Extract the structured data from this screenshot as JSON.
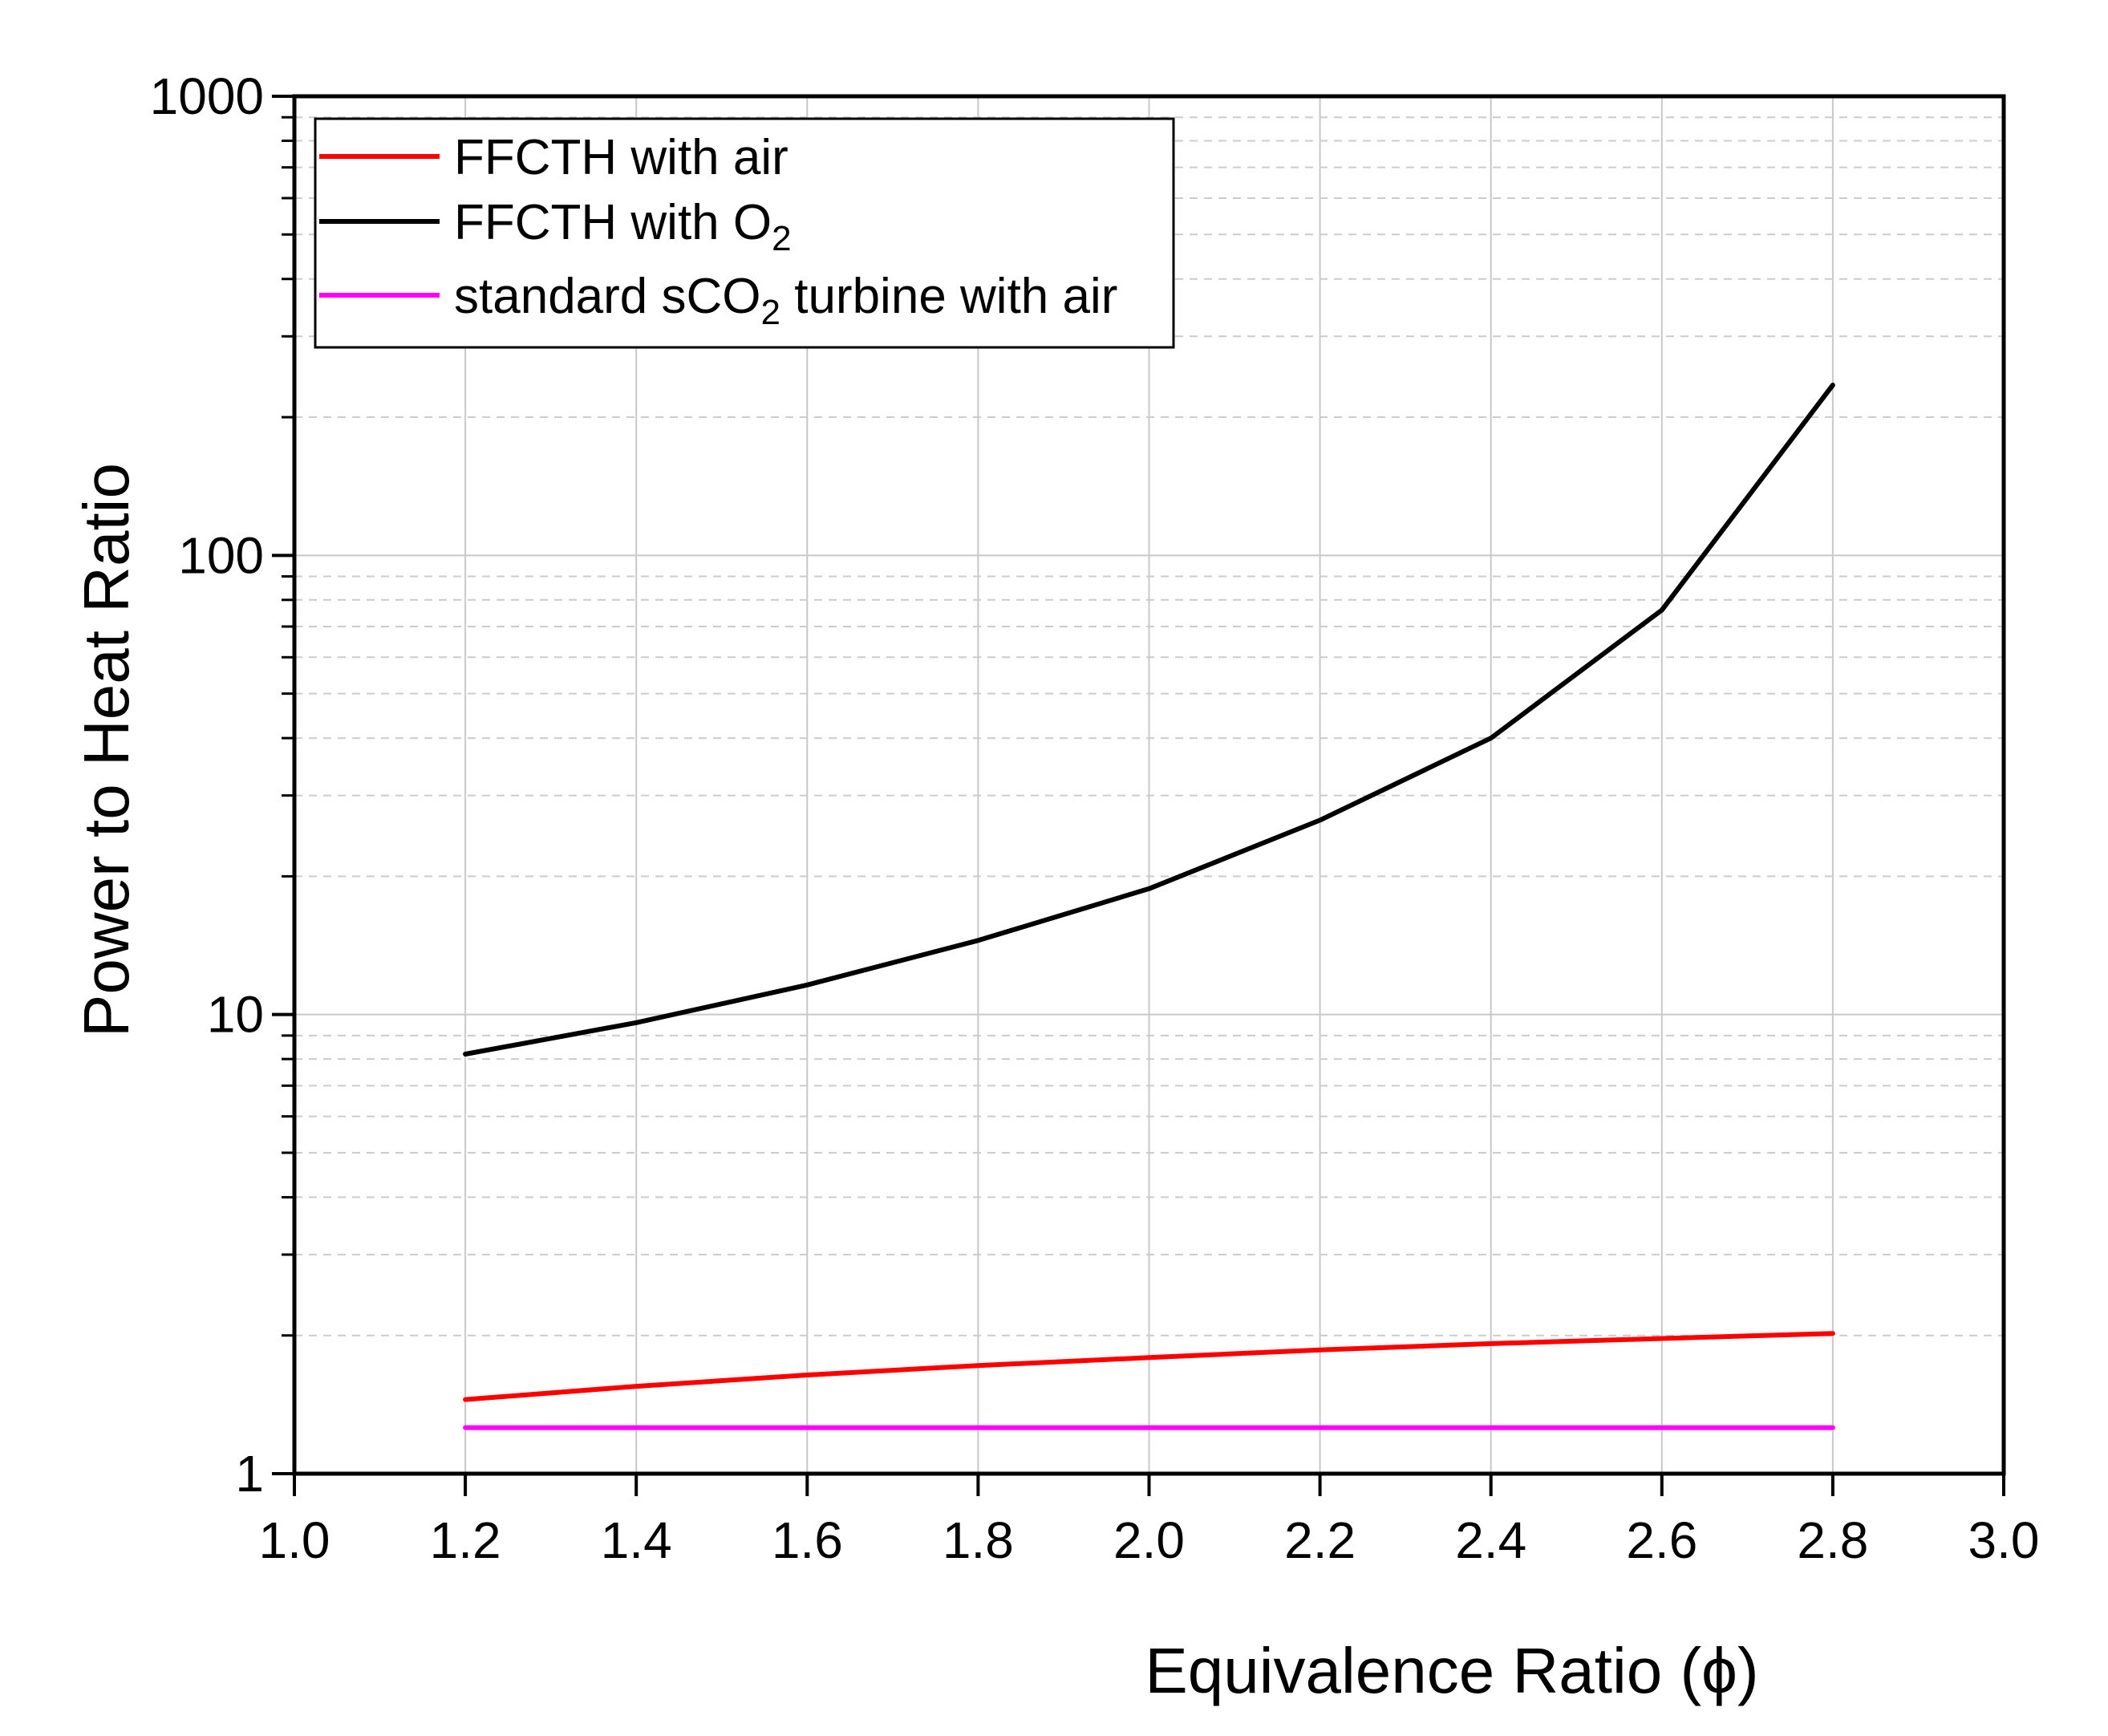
{
  "chart_data": {
    "type": "line",
    "title": "",
    "xlabel": "Equivalence Ratio (ϕ)",
    "ylabel": "Power to Heat Ratio",
    "xlim": [
      1.0,
      3.0
    ],
    "ylim": [
      1,
      1000
    ],
    "yscale": "log",
    "xticks": [
      "1.0",
      "1.2",
      "1.4",
      "1.6",
      "1.8",
      "2.0",
      "2.2",
      "2.4",
      "2.6",
      "2.8",
      "3.0"
    ],
    "yticks": [
      "1",
      "10",
      "100",
      "1000"
    ],
    "grid": true,
    "legend_position": "top-left",
    "series": [
      {
        "name": "FFCTH with air",
        "legend_main": "FFCTH with air",
        "legend_sub": "",
        "legend_tail": "",
        "color": "#ff0000",
        "x": [
          1.2,
          1.4,
          1.6,
          1.8,
          2.0,
          2.2,
          2.4,
          2.6,
          2.8
        ],
        "y": [
          1.45,
          1.55,
          1.64,
          1.72,
          1.79,
          1.86,
          1.92,
          1.97,
          2.02
        ]
      },
      {
        "name": "FFCTH with O2",
        "legend_main": "FFCTH with O",
        "legend_sub": "2",
        "legend_tail": "",
        "color": "#000000",
        "x": [
          1.2,
          1.4,
          1.6,
          1.8,
          2.0,
          2.2,
          2.4,
          2.6,
          2.8
        ],
        "y": [
          8.2,
          9.6,
          11.6,
          14.5,
          18.8,
          26.5,
          40,
          76,
          235
        ]
      },
      {
        "name": "standard sCO2 turbine with air",
        "legend_main": "standard sCO",
        "legend_sub": "2",
        "legend_tail": " turbine with air",
        "color": "#ff00ff",
        "x": [
          1.2,
          1.4,
          1.6,
          1.8,
          2.0,
          2.2,
          2.4,
          2.6,
          2.8
        ],
        "y": [
          1.26,
          1.26,
          1.26,
          1.26,
          1.26,
          1.26,
          1.26,
          1.26,
          1.26
        ]
      }
    ]
  }
}
